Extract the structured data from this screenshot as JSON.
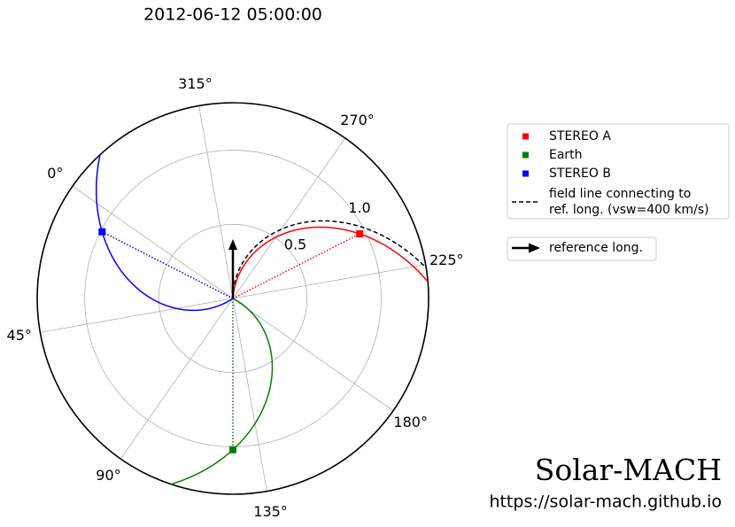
{
  "chart_data": {
    "type": "polar",
    "title": "2012-06-12 05:00:00",
    "rlim": [
      0,
      1.32
    ],
    "rticks": [
      0.5,
      {
        "value": 1,
        "label": "1.0"
      }
    ],
    "thetaticks": [
      {
        "value": 0,
        "label": "0°"
      },
      {
        "value": 45,
        "label": "45°"
      },
      {
        "value": 90,
        "label": "90°"
      },
      {
        "value": 135,
        "label": "135°"
      },
      {
        "value": 180,
        "label": "180°"
      },
      {
        "value": 225,
        "label": "225°"
      },
      {
        "value": 270,
        "label": "270°"
      },
      {
        "value": 315,
        "label": "315°"
      }
    ],
    "grid": true,
    "series": [
      {
        "name": "STEREO A",
        "color": "#ff0000",
        "longitude": 242,
        "r": 0.96
      },
      {
        "name": "Earth",
        "color": "#008000",
        "longitude": 125,
        "r": 1.02
      },
      {
        "name": "STEREO B",
        "color": "#0000ff",
        "longitude": 8,
        "r": 0.99
      }
    ],
    "reference": {
      "longitude": 305,
      "vsw": 400,
      "color": "#000000",
      "field_line_label": [
        "field line connecting to",
        "ref. long. (vsw=400 km/s)"
      ],
      "arrow_label": "reference long."
    },
    "brand": "Solar-MACH",
    "url": "https://solar-mach.github.io"
  }
}
